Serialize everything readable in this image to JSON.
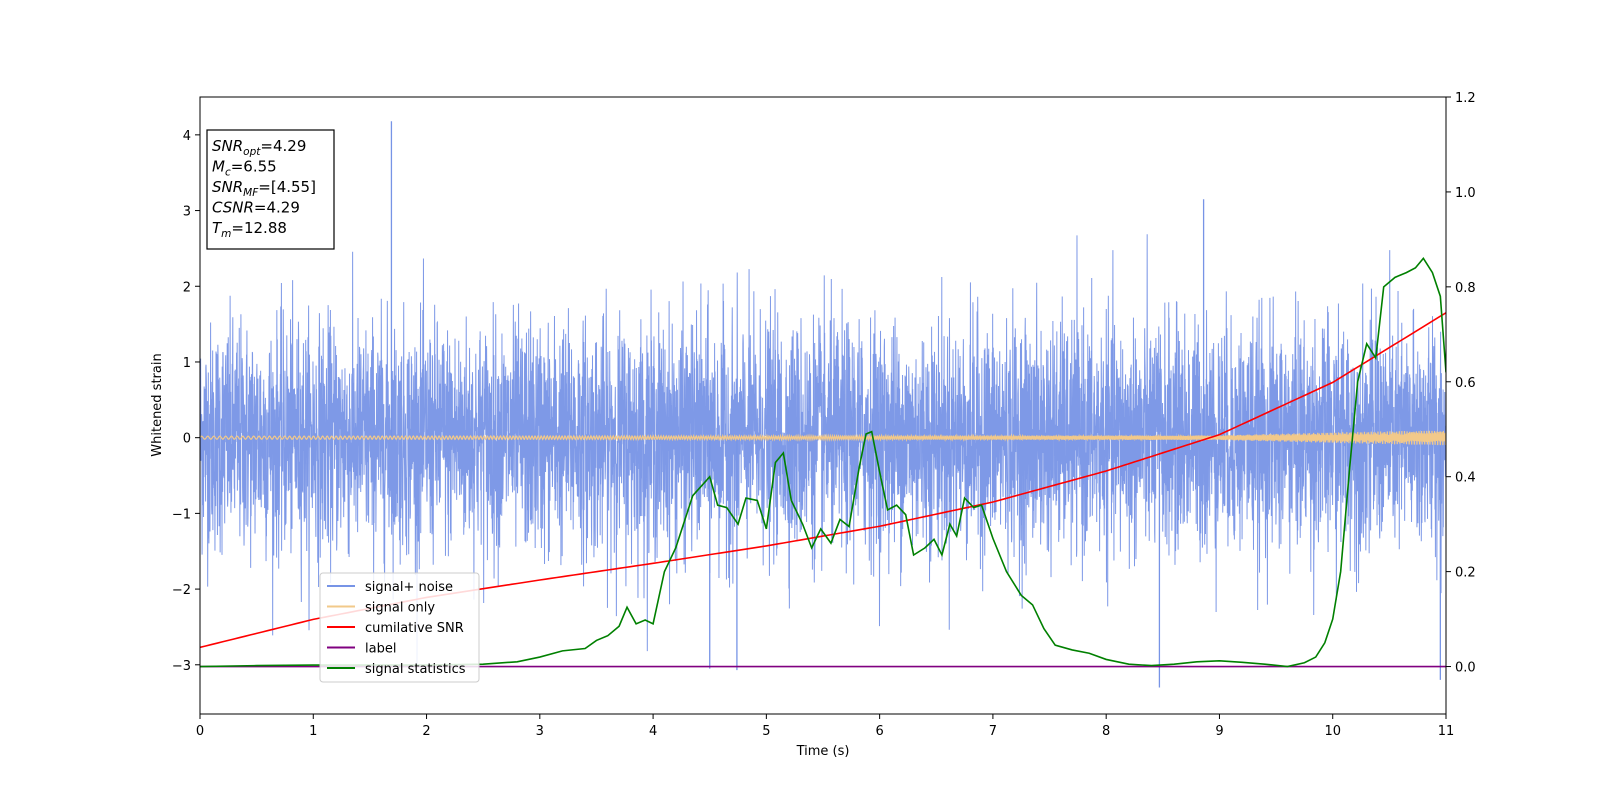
{
  "chart_data": {
    "type": "line",
    "xlabel": "Time (s)",
    "ylabel": "Whitened strain",
    "xlim": [
      0,
      11
    ],
    "ylim": [
      -3.65,
      4.5
    ],
    "y2lim": [
      -0.1,
      1.2
    ],
    "xticks": [
      0,
      1,
      2,
      3,
      4,
      5,
      6,
      7,
      8,
      9,
      10,
      11
    ],
    "yticks": [
      -3,
      -2,
      -1,
      0,
      1,
      2,
      3,
      4
    ],
    "y2ticks": [
      "0.0",
      "0.2",
      "0.4",
      "0.6",
      "0.8",
      "1.0",
      "1.2"
    ],
    "grid": false,
    "legend_position": "lower-left",
    "info_box": {
      "lines": [
        {
          "symbol": "SNR",
          "sub": "opt",
          "value": "=4.29"
        },
        {
          "symbol": "M",
          "sub": "c",
          "value": "=6.55"
        },
        {
          "symbol": "SNR",
          "sub": "MF",
          "value": "=[4.55]"
        },
        {
          "symbol": "CSNR",
          "sub": "",
          "value": "=4.29"
        },
        {
          "symbol": "T",
          "sub": "m",
          "value": "=12.88"
        }
      ]
    },
    "series": [
      {
        "name": "signal+ noise",
        "color": "#7794e6",
        "axis": "left",
        "kind": "noise",
        "spread": 0.75,
        "peaks": [
          [
            1.69,
            4.18
          ],
          [
            8.86,
            3.15
          ],
          [
            8.47,
            -3.3
          ],
          [
            4.5,
            -3.05
          ],
          [
            4.74,
            -3.07
          ],
          [
            10.95,
            -3.2
          ]
        ]
      },
      {
        "name": "signal only",
        "color": "#f2c98a",
        "axis": "left",
        "kind": "chirp",
        "amplitude": [
          [
            0,
            0.02
          ],
          [
            9,
            0.03
          ],
          [
            10,
            0.07
          ],
          [
            11,
            0.1
          ]
        ]
      },
      {
        "name": "cumilative SNR",
        "color": "#ff0000",
        "axis": "left",
        "x": [
          0,
          1,
          2,
          3,
          4,
          5,
          6,
          7,
          8,
          9,
          10,
          11
        ],
        "y": [
          -2.77,
          -2.4,
          -2.11,
          -1.88,
          -1.66,
          -1.43,
          -1.17,
          -0.85,
          -0.44,
          0.04,
          0.73,
          1.65
        ]
      },
      {
        "name": "label",
        "color": "#800080",
        "axis": "right",
        "x": [
          0,
          11
        ],
        "y": [
          0,
          0
        ]
      },
      {
        "name": "signal statistics",
        "color": "#008000",
        "axis": "right",
        "x": [
          0,
          0.5,
          1,
          1.5,
          2,
          2.5,
          2.8,
          3,
          3.2,
          3.4,
          3.5,
          3.6,
          3.7,
          3.77,
          3.85,
          3.93,
          4,
          4.1,
          4.2,
          4.35,
          4.5,
          4.57,
          4.65,
          4.75,
          4.82,
          4.92,
          5,
          5.08,
          5.15,
          5.22,
          5.32,
          5.4,
          5.48,
          5.57,
          5.65,
          5.73,
          5.82,
          5.88,
          5.93,
          6,
          6.07,
          6.15,
          6.23,
          6.3,
          6.4,
          6.48,
          6.55,
          6.62,
          6.68,
          6.75,
          6.83,
          6.9,
          7,
          7.12,
          7.25,
          7.35,
          7.45,
          7.55,
          7.7,
          7.85,
          8,
          8.2,
          8.4,
          8.6,
          8.8,
          9,
          9.2,
          9.4,
          9.6,
          9.75,
          9.85,
          9.93,
          10,
          10.07,
          10.15,
          10.22,
          10.3,
          10.38,
          10.45,
          10.55,
          10.65,
          10.73,
          10.8,
          10.88,
          10.95,
          11
        ],
        "y": [
          0,
          0.002,
          0.003,
          0.003,
          0.003,
          0.005,
          0.01,
          0.02,
          0.033,
          0.038,
          0.055,
          0.065,
          0.085,
          0.125,
          0.09,
          0.098,
          0.09,
          0.2,
          0.25,
          0.36,
          0.4,
          0.34,
          0.335,
          0.3,
          0.355,
          0.35,
          0.29,
          0.43,
          0.45,
          0.35,
          0.3,
          0.25,
          0.29,
          0.26,
          0.31,
          0.295,
          0.42,
          0.49,
          0.495,
          0.41,
          0.33,
          0.34,
          0.32,
          0.235,
          0.25,
          0.268,
          0.235,
          0.3,
          0.275,
          0.355,
          0.335,
          0.34,
          0.27,
          0.2,
          0.15,
          0.13,
          0.08,
          0.045,
          0.035,
          0.028,
          0.015,
          0.005,
          0.002,
          0.005,
          0.01,
          0.012,
          0.009,
          0.005,
          0,
          0.008,
          0.02,
          0.05,
          0.1,
          0.2,
          0.42,
          0.6,
          0.68,
          0.65,
          0.8,
          0.82,
          0.83,
          0.84,
          0.86,
          0.83,
          0.78,
          0.62
        ]
      }
    ]
  }
}
